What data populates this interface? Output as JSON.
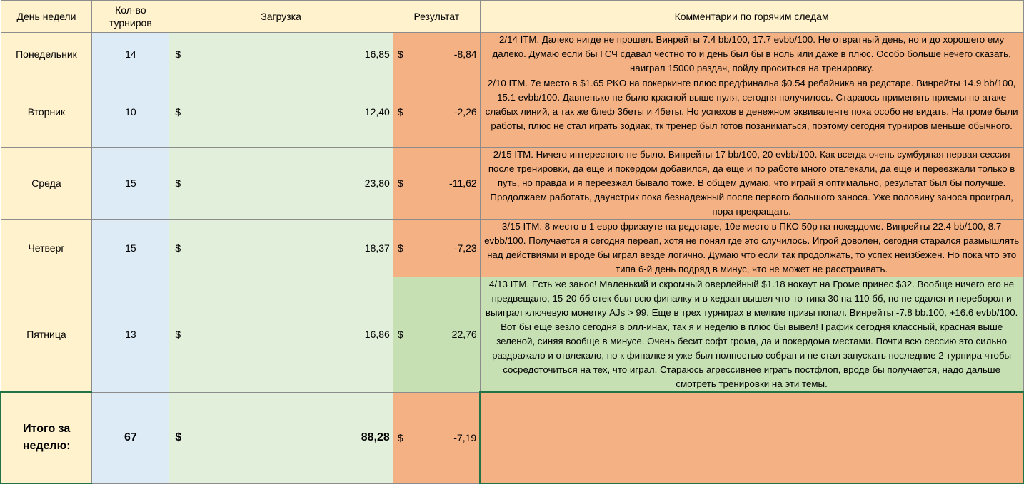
{
  "headers": {
    "day": "День недели",
    "count": "Кол-во турниров",
    "load": "Загрузка",
    "result": "Результат",
    "comment": "Комментарии по горячим следам"
  },
  "currency": "$",
  "rows": [
    {
      "day": "Понедельник",
      "count": "14",
      "load": "16,85",
      "result": "-8,84",
      "result_sign": "negative",
      "comment": "2/14 ITM. Далеко нигде не прошел. Винрейты 7.4 bb/100, 17.7 evbb/100. Не отвратный день, но и до хорошего ему далеко. Думаю если бы ГСЧ сдавал честно то и день был бы в ноль или даже в плюс. Особо больше нечего сказать, наиграл 15000 раздач, пойду проситься на тренировку."
    },
    {
      "day": "Вторник",
      "count": "10",
      "load": "12,40",
      "result": "-2,26",
      "result_sign": "negative",
      "comment": "2/10 ITM. 7е место в $1.65 PKO на покеркинге плюс предфинальа $0.54 ребайника на редстаре. Винрейты 14.9 bb/100, 15.1 evbb/100. Давненько не было красной выше нуля, сегодня получилось. Стараюсь применять приемы по атаке слабых линий, а так же блеф 3беты и 4беты. Но успехов в денежном эквиваленте пока особо не видать. На громе были работы, плюс не стал играть зодиак, тк тренер был готов позаниматься, поэтому сегодня турниров меньше обычного."
    },
    {
      "day": "Среда",
      "count": "15",
      "load": "23,80",
      "result": "-11,62",
      "result_sign": "negative",
      "comment": "2/15 ITM. Ничего интересного не было. Винрейты 17 bb/100, 20 evbb/100. Как всегда очень сумбурная первая сессия после тренировки, да еще и покердом добавился, да еще и по работе много отвлекали, да еще и переезжали только в путь, но правда и я переезжал бывало тоже. В общем думаю, что играй я оптимально, результат был бы получше. Продолжаем работать, даунстрик пока безнадежный после первого большого заноса. Уже половину заноса проиграл, пора прекращать."
    },
    {
      "day": "Четверг",
      "count": "15",
      "load": "18,37",
      "result": "-7,23",
      "result_sign": "negative",
      "comment": "3/15 ITM. 8 место в 1 евро фризауте на редстаре, 10е место в ПКО 50р на покердоме. Винрейты 22.4 bb/100, 8.7 evbb/100. Получается я сегодня переап, хотя не понял где это случилось. Игрой доволен, сегодня старался размышлять над действиями и вроде бы играл везде логично. Думаю что если так продолжать, то успех неизбежен. Но пока что это типа 6-й день подряд в минус, что не может не расстраивать."
    },
    {
      "day": "Пятница",
      "count": "13",
      "load": "16,86",
      "result": "22,76",
      "result_sign": "positive",
      "comment": "4/13 ITM. Есть же занос! Маленький и скромный оверлейный $1.18 нокаут на Громе принес $32. Вообще ничего его не предвещало, 15-20 бб стек был всю финалку и в хедзап вышел что-то типа 30 на 110 бб, но не сдался и переборол и выиграл ключевую монетку AJs > 99. Еще в трех турнирах в мелкие призы попал. Винрейты -7.8 bb.100, +16.6 evbb/100. Вот бы еще везло сегодня в олл-инах, так я и неделю в плюс бы вывел! График сегодня классный, красная выше зеленой, синяя вообще в минусе. Очень бесит софт грома, да и покердома местами. Почти всю сессию это сильно раздражало и отвлекало, но к финалке я уже был полностью собран и не стал запускать последние 2 турнира чтобы сосредоточиться на тех, что играл. Стараюсь агрессивнее играть постфлоп, вроде бы получается, надо дальше смотреть тренировки на эти темы."
    }
  ],
  "total": {
    "label": "Итого за неделю:",
    "count": "67",
    "load": "88,28",
    "result": "-7,19",
    "comment": ""
  },
  "colors": {
    "header_bg": "#fff2cc",
    "count_bg": "#ddebf7",
    "load_bg": "#e2efda",
    "negative_bg": "#f4b183",
    "positive_bg": "#c6e0b4",
    "selection": "#217346"
  }
}
